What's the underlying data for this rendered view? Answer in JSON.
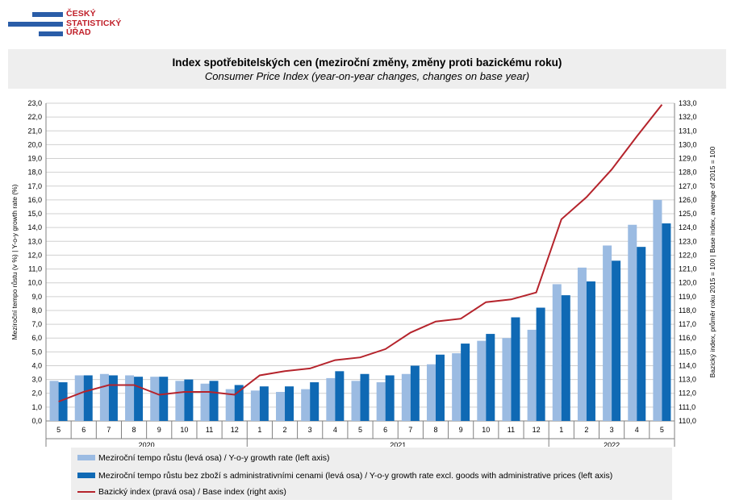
{
  "logo": {
    "line1": "ČESKÝ",
    "line2": "STATISTICKÝ",
    "line3": "ÚŘAD"
  },
  "title": {
    "cz": "Index spotřebitelských cen (meziroční změny, změny proti bazickému roku)",
    "en": "Consumer Price Index (year-on-year changes, changes on base year)"
  },
  "colors": {
    "series1": "#9bbbe2",
    "series2": "#0f69b4",
    "line": "#b5242c",
    "grid": "#d0d0d0",
    "panel": "#eeeeee"
  },
  "legend": {
    "s1": "Meziroční tempo růstu (levá osa) / Y-o-y growth rate (left axis)",
    "s2": "Meziroční tempo růstu bez zboží s administrativními cenami (levá osa) / Y-o-y growth rate excl. goods with administrative prices (left axis)",
    "s3": "Bazický index (pravá osa) / Base index (right axis)"
  },
  "chart_data": {
    "type": "bar",
    "title": "Index spotřebitelských cen (meziroční změny, změny proti bazickému roku)",
    "subtitle": "Consumer Price Index (year-on-year changes, changes on base year)",
    "ylabel": "Meziroční tempo růstu (v %) | Y-o-y growth rate (%)",
    "ylabel_right": "Bazický index, průměr roku 2015 = 100 | Base index, average of 2015 = 100",
    "ylim": [
      0,
      23
    ],
    "ylim_right": [
      110,
      133
    ],
    "categories": [
      "5",
      "6",
      "7",
      "8",
      "9",
      "10",
      "11",
      "12",
      "1",
      "2",
      "3",
      "4",
      "5",
      "6",
      "7",
      "8",
      "9",
      "10",
      "11",
      "12",
      "1",
      "2",
      "3",
      "4",
      "5"
    ],
    "years": [
      {
        "label": "2020",
        "months": 8
      },
      {
        "label": "2021",
        "months": 12
      },
      {
        "label": "2022",
        "months": 5
      }
    ],
    "y_ticks_left": [
      "0,0",
      "1,0",
      "2,0",
      "3,0",
      "4,0",
      "5,0",
      "6,0",
      "7,0",
      "8,0",
      "9,0",
      "10,0",
      "11,0",
      "12,0",
      "13,0",
      "14,0",
      "15,0",
      "16,0",
      "17,0",
      "18,0",
      "19,0",
      "20,0",
      "21,0",
      "22,0",
      "23,0"
    ],
    "y_ticks_right": [
      "110,0",
      "111,0",
      "112,0",
      "113,0",
      "114,0",
      "115,0",
      "116,0",
      "117,0",
      "118,0",
      "119,0",
      "120,0",
      "121,0",
      "122,0",
      "123,0",
      "124,0",
      "125,0",
      "126,0",
      "127,0",
      "128,0",
      "129,0",
      "130,0",
      "131,0",
      "132,0",
      "133,0"
    ],
    "series": [
      {
        "name": "Meziroční tempo růstu (levá osa) / Y-o-y growth rate (left axis)",
        "axis": "left",
        "values": [
          2.9,
          3.3,
          3.4,
          3.3,
          3.2,
          2.9,
          2.7,
          2.3,
          2.2,
          2.1,
          2.3,
          3.1,
          2.9,
          2.8,
          3.4,
          4.1,
          4.9,
          5.8,
          6.0,
          6.6,
          9.9,
          11.1,
          12.7,
          14.2,
          16.0
        ]
      },
      {
        "name": "Meziroční tempo růstu bez zboží s administrativními cenami (levá osa) / Y-o-y growth rate excl. goods with administrative prices (left axis)",
        "axis": "left",
        "values": [
          2.8,
          3.3,
          3.3,
          3.2,
          3.2,
          3.0,
          2.9,
          2.6,
          2.5,
          2.5,
          2.8,
          3.6,
          3.4,
          3.3,
          4.0,
          4.8,
          5.6,
          6.3,
          7.5,
          8.2,
          9.1,
          10.1,
          11.6,
          12.6,
          14.3
        ]
      },
      {
        "name": "Bazický index (pravá osa) / Base index (right axis)",
        "axis": "right",
        "type": "line",
        "values": [
          111.4,
          112.1,
          112.6,
          112.6,
          111.9,
          112.1,
          112.1,
          111.9,
          113.3,
          113.6,
          113.8,
          114.4,
          114.6,
          115.2,
          116.4,
          117.2,
          117.4,
          118.6,
          118.8,
          119.3,
          124.6,
          126.2,
          128.2,
          130.6,
          132.9
        ]
      }
    ]
  }
}
